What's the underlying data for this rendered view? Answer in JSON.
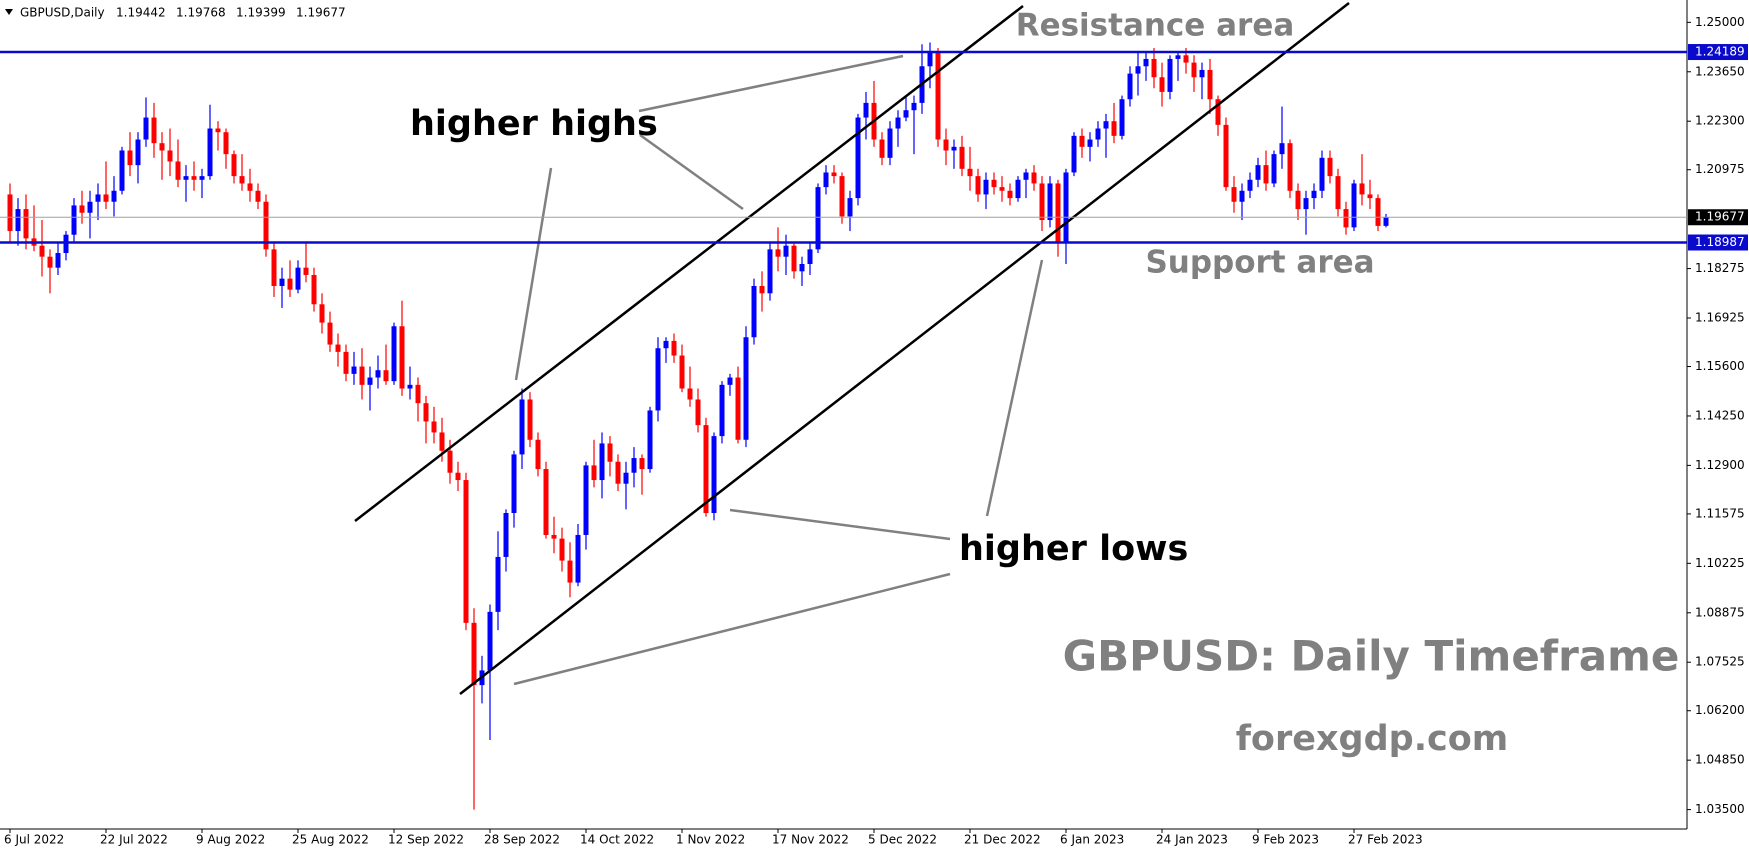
{
  "chart_data": {
    "type": "candlestick",
    "symbol": "GBPUSD,Daily",
    "up_color": "#0000ff",
    "down_color": "#ff0000",
    "level_color": "#0a0acd",
    "grid": false,
    "ylim": [
      1.0297,
      1.2561
    ],
    "yticks": [
      {
        "value": 1.25,
        "label": "1.25000"
      },
      {
        "value": 1.2365,
        "label": "1.23650"
      },
      {
        "value": 1.223,
        "label": "1.22300"
      },
      1.20975,
      1.18275,
      1.16925,
      {
        "value": 1.156,
        "label": "1.15600"
      },
      {
        "value": 1.1425,
        "label": "1.14250"
      },
      {
        "value": 1.129,
        "label": "1.12900"
      },
      1.11575,
      1.10225,
      1.08875,
      1.07525,
      {
        "value": 1.062,
        "label": "1.06200"
      },
      {
        "value": 1.0485,
        "label": "1.04850"
      },
      {
        "value": 1.035,
        "label": "1.03500"
      }
    ],
    "levels": [
      {
        "name": "Resistance area",
        "value": 1.24189
      },
      {
        "name": "Support area",
        "value": 1.18987
      }
    ],
    "annotations": {
      "higher_highs": "higher highs",
      "higher_lows": "higher lows",
      "watermark": "GBPUSD: Daily Timeframe",
      "website": "forexgdp.com"
    },
    "categories": [
      "6 Jul 2022",
      null,
      null,
      null,
      null,
      null,
      null,
      null,
      null,
      null,
      null,
      null,
      "22 Jul 2022",
      null,
      null,
      null,
      null,
      null,
      null,
      null,
      null,
      null,
      null,
      null,
      "9 Aug 2022",
      null,
      null,
      null,
      null,
      null,
      null,
      null,
      null,
      null,
      null,
      null,
      "25 Aug 2022",
      null,
      null,
      null,
      null,
      null,
      null,
      null,
      null,
      null,
      null,
      null,
      "12 Sep 2022",
      null,
      null,
      null,
      null,
      null,
      null,
      null,
      null,
      null,
      null,
      null,
      "28 Sep 2022",
      null,
      null,
      null,
      null,
      null,
      null,
      null,
      null,
      null,
      null,
      null,
      "14 Oct 2022",
      null,
      null,
      null,
      null,
      null,
      null,
      null,
      null,
      null,
      null,
      null,
      "1 Nov 2022",
      null,
      null,
      null,
      null,
      null,
      null,
      null,
      null,
      null,
      null,
      null,
      "17 Nov 2022",
      null,
      null,
      null,
      null,
      null,
      null,
      null,
      null,
      null,
      null,
      null,
      "5 Dec 2022",
      null,
      null,
      null,
      null,
      null,
      null,
      null,
      null,
      null,
      null,
      null,
      "21 Dec 2022",
      null,
      null,
      null,
      null,
      null,
      null,
      null,
      null,
      null,
      null,
      null,
      "6 Jan 2023",
      null,
      null,
      null,
      null,
      null,
      null,
      null,
      null,
      null,
      null,
      null,
      "24 Jan 2023",
      null,
      null,
      null,
      null,
      null,
      null,
      null,
      null,
      null,
      null,
      null,
      "9 Feb 2023",
      null,
      null,
      null,
      null,
      null,
      null,
      null,
      null,
      null,
      null,
      null,
      "27 Feb 2023",
      null,
      null,
      null,
      null
    ],
    "ohlc": [
      [
        1.203,
        1.206,
        1.19,
        1.193
      ],
      [
        1.193,
        1.202,
        1.189,
        1.199
      ],
      [
        1.199,
        1.203,
        1.188,
        1.191
      ],
      [
        1.191,
        1.2,
        1.1875,
        1.189
      ],
      [
        1.189,
        1.196,
        1.1806,
        1.186
      ],
      [
        1.186,
        1.188,
        1.176,
        1.183
      ],
      [
        1.183,
        1.19,
        1.181,
        1.187
      ],
      [
        1.187,
        1.193,
        1.185,
        1.192
      ],
      [
        1.192,
        1.202,
        1.19,
        1.2
      ],
      [
        1.2,
        1.204,
        1.195,
        1.198
      ],
      [
        1.198,
        1.204,
        1.191,
        1.201
      ],
      [
        1.201,
        1.206,
        1.196,
        1.203
      ],
      [
        1.203,
        1.212,
        1.199,
        1.201
      ],
      [
        1.201,
        1.208,
        1.197,
        1.204
      ],
      [
        1.204,
        1.216,
        1.203,
        1.215
      ],
      [
        1.215,
        1.22,
        1.208,
        1.211
      ],
      [
        1.211,
        1.22,
        1.206,
        1.218
      ],
      [
        1.218,
        1.2295,
        1.216,
        1.224
      ],
      [
        1.224,
        1.228,
        1.213,
        1.217
      ],
      [
        1.217,
        1.22,
        1.207,
        1.215
      ],
      [
        1.215,
        1.221,
        1.208,
        1.212
      ],
      [
        1.212,
        1.218,
        1.205,
        1.207
      ],
      [
        1.207,
        1.211,
        1.201,
        1.208
      ],
      [
        1.208,
        1.212,
        1.204,
        1.207
      ],
      [
        1.207,
        1.21,
        1.202,
        1.208
      ],
      [
        1.208,
        1.2275,
        1.207,
        1.221
      ],
      [
        1.221,
        1.223,
        1.215,
        1.22
      ],
      [
        1.22,
        1.221,
        1.21,
        1.214
      ],
      [
        1.214,
        1.215,
        1.206,
        1.208
      ],
      [
        1.208,
        1.214,
        1.204,
        1.206
      ],
      [
        1.206,
        1.21,
        1.201,
        1.204
      ],
      [
        1.204,
        1.206,
        1.199,
        1.201
      ],
      [
        1.201,
        1.203,
        1.186,
        1.188
      ],
      [
        1.188,
        1.19,
        1.175,
        1.178
      ],
      [
        1.178,
        1.183,
        1.172,
        1.18
      ],
      [
        1.18,
        1.185,
        1.175,
        1.177
      ],
      [
        1.177,
        1.185,
        1.176,
        1.183
      ],
      [
        1.183,
        1.19,
        1.179,
        1.181
      ],
      [
        1.181,
        1.183,
        1.171,
        1.173
      ],
      [
        1.173,
        1.176,
        1.165,
        1.168
      ],
      [
        1.168,
        1.171,
        1.16,
        1.162
      ],
      [
        1.162,
        1.165,
        1.156,
        1.16
      ],
      [
        1.16,
        1.162,
        1.152,
        1.154
      ],
      [
        1.154,
        1.16,
        1.151,
        1.156
      ],
      [
        1.156,
        1.161,
        1.147,
        1.151
      ],
      [
        1.151,
        1.156,
        1.144,
        1.153
      ],
      [
        1.153,
        1.159,
        1.15,
        1.155
      ],
      [
        1.155,
        1.162,
        1.151,
        1.152
      ],
      [
        1.152,
        1.168,
        1.151,
        1.167
      ],
      [
        1.167,
        1.174,
        1.148,
        1.15
      ],
      [
        1.15,
        1.156,
        1.147,
        1.151
      ],
      [
        1.151,
        1.153,
        1.141,
        1.146
      ],
      [
        1.146,
        1.148,
        1.135,
        1.141
      ],
      [
        1.141,
        1.145,
        1.135,
        1.138
      ],
      [
        1.138,
        1.142,
        1.13,
        1.133
      ],
      [
        1.133,
        1.136,
        1.124,
        1.127
      ],
      [
        1.127,
        1.13,
        1.122,
        1.125
      ],
      [
        1.125,
        1.127,
        1.084,
        1.086
      ],
      [
        1.086,
        1.09,
        1.035,
        1.069
      ],
      [
        1.069,
        1.077,
        1.064,
        1.073
      ],
      [
        1.073,
        1.091,
        1.054,
        1.089
      ],
      [
        1.089,
        1.111,
        1.084,
        1.104
      ],
      [
        1.104,
        1.117,
        1.1,
        1.116
      ],
      [
        1.116,
        1.133,
        1.112,
        1.132
      ],
      [
        1.132,
        1.15,
        1.128,
        1.147
      ],
      [
        1.147,
        1.149,
        1.134,
        1.136
      ],
      [
        1.136,
        1.138,
        1.126,
        1.128
      ],
      [
        1.128,
        1.13,
        1.109,
        1.11
      ],
      [
        1.11,
        1.115,
        1.105,
        1.109
      ],
      [
        1.109,
        1.112,
        1.1,
        1.103
      ],
      [
        1.103,
        1.108,
        1.093,
        1.097
      ],
      [
        1.097,
        1.113,
        1.096,
        1.11
      ],
      [
        1.11,
        1.13,
        1.106,
        1.129
      ],
      [
        1.129,
        1.136,
        1.123,
        1.125
      ],
      [
        1.125,
        1.138,
        1.12,
        1.135
      ],
      [
        1.135,
        1.137,
        1.126,
        1.13
      ],
      [
        1.13,
        1.132,
        1.122,
        1.124
      ],
      [
        1.124,
        1.13,
        1.117,
        1.127
      ],
      [
        1.127,
        1.134,
        1.123,
        1.131
      ],
      [
        1.131,
        1.132,
        1.121,
        1.128
      ],
      [
        1.128,
        1.145,
        1.127,
        1.144
      ],
      [
        1.144,
        1.164,
        1.141,
        1.161
      ],
      [
        1.161,
        1.164,
        1.157,
        1.163
      ],
      [
        1.163,
        1.165,
        1.157,
        1.159
      ],
      [
        1.159,
        1.162,
        1.149,
        1.15
      ],
      [
        1.15,
        1.156,
        1.145,
        1.147
      ],
      [
        1.147,
        1.15,
        1.138,
        1.14
      ],
      [
        1.14,
        1.142,
        1.115,
        1.116
      ],
      [
        1.116,
        1.138,
        1.114,
        1.137
      ],
      [
        1.137,
        1.152,
        1.135,
        1.151
      ],
      [
        1.151,
        1.154,
        1.148,
        1.153
      ],
      [
        1.153,
        1.156,
        1.135,
        1.136
      ],
      [
        1.136,
        1.167,
        1.134,
        1.164
      ],
      [
        1.164,
        1.18,
        1.162,
        1.178
      ],
      [
        1.178,
        1.182,
        1.171,
        1.176
      ],
      [
        1.176,
        1.19,
        1.174,
        1.188
      ],
      [
        1.188,
        1.194,
        1.182,
        1.186
      ],
      [
        1.186,
        1.192,
        1.181,
        1.189
      ],
      [
        1.189,
        1.19,
        1.18,
        1.182
      ],
      [
        1.182,
        1.186,
        1.178,
        1.184
      ],
      [
        1.184,
        1.19,
        1.181,
        1.188
      ],
      [
        1.188,
        1.206,
        1.187,
        1.205
      ],
      [
        1.205,
        1.211,
        1.203,
        1.209
      ],
      [
        1.209,
        1.211,
        1.206,
        1.208
      ],
      [
        1.208,
        1.209,
        1.195,
        1.197
      ],
      [
        1.197,
        1.204,
        1.193,
        1.202
      ],
      [
        1.202,
        1.225,
        1.2,
        1.224
      ],
      [
        1.224,
        1.231,
        1.218,
        1.228
      ],
      [
        1.228,
        1.234,
        1.216,
        1.218
      ],
      [
        1.218,
        1.22,
        1.211,
        1.213
      ],
      [
        1.213,
        1.223,
        1.211,
        1.221
      ],
      [
        1.221,
        1.226,
        1.216,
        1.224
      ],
      [
        1.224,
        1.23,
        1.223,
        1.226
      ],
      [
        1.226,
        1.23,
        1.214,
        1.228
      ],
      [
        1.228,
        1.244,
        1.225,
        1.238
      ],
      [
        1.238,
        1.2445,
        1.232,
        1.242
      ],
      [
        1.242,
        1.243,
        1.216,
        1.218
      ],
      [
        1.218,
        1.221,
        1.211,
        1.215
      ],
      [
        1.215,
        1.218,
        1.21,
        1.216
      ],
      [
        1.216,
        1.219,
        1.208,
        1.21
      ],
      [
        1.21,
        1.216,
        1.204,
        1.208
      ],
      [
        1.208,
        1.21,
        1.201,
        1.203
      ],
      [
        1.203,
        1.209,
        1.199,
        1.207
      ],
      [
        1.207,
        1.209,
        1.203,
        1.205
      ],
      [
        1.205,
        1.208,
        1.201,
        1.204
      ],
      [
        1.204,
        1.206,
        1.2,
        1.202
      ],
      [
        1.202,
        1.208,
        1.201,
        1.207
      ],
      [
        1.207,
        1.21,
        1.202,
        1.209
      ],
      [
        1.209,
        1.211,
        1.204,
        1.206
      ],
      [
        1.206,
        1.208,
        1.193,
        1.196
      ],
      [
        1.196,
        1.208,
        1.194,
        1.206
      ],
      [
        1.206,
        1.207,
        1.186,
        1.19
      ],
      [
        1.19,
        1.21,
        1.184,
        1.209
      ],
      [
        1.209,
        1.22,
        1.208,
        1.219
      ],
      [
        1.219,
        1.221,
        1.213,
        1.216
      ],
      [
        1.216,
        1.22,
        1.212,
        1.218
      ],
      [
        1.218,
        1.223,
        1.216,
        1.221
      ],
      [
        1.221,
        1.225,
        1.213,
        1.223
      ],
      [
        1.223,
        1.228,
        1.217,
        1.219
      ],
      [
        1.219,
        1.23,
        1.218,
        1.229
      ],
      [
        1.229,
        1.238,
        1.227,
        1.236
      ],
      [
        1.236,
        1.242,
        1.23,
        1.238
      ],
      [
        1.238,
        1.242,
        1.234,
        1.24
      ],
      [
        1.24,
        1.243,
        1.232,
        1.235
      ],
      [
        1.235,
        1.239,
        1.227,
        1.231
      ],
      [
        1.231,
        1.241,
        1.229,
        1.24
      ],
      [
        1.24,
        1.242,
        1.234,
        1.241
      ],
      [
        1.241,
        1.243,
        1.236,
        1.239
      ],
      [
        1.239,
        1.241,
        1.231,
        1.235
      ],
      [
        1.235,
        1.239,
        1.229,
        1.237
      ],
      [
        1.237,
        1.24,
        1.225,
        1.229
      ],
      [
        1.229,
        1.23,
        1.219,
        1.222
      ],
      [
        1.222,
        1.224,
        1.204,
        1.205
      ],
      [
        1.205,
        1.208,
        1.198,
        1.201
      ],
      [
        1.201,
        1.206,
        1.196,
        1.204
      ],
      [
        1.204,
        1.209,
        1.202,
        1.207
      ],
      [
        1.207,
        1.213,
        1.205,
        1.211
      ],
      [
        1.211,
        1.215,
        1.204,
        1.206
      ],
      [
        1.206,
        1.215,
        1.205,
        1.214
      ],
      [
        1.214,
        1.227,
        1.21,
        1.217
      ],
      [
        1.217,
        1.218,
        1.202,
        1.204
      ],
      [
        1.204,
        1.206,
        1.196,
        1.199
      ],
      [
        1.199,
        1.204,
        1.192,
        1.202
      ],
      [
        1.202,
        1.206,
        1.199,
        1.204
      ],
      [
        1.204,
        1.215,
        1.202,
        1.213
      ],
      [
        1.213,
        1.215,
        1.206,
        1.208
      ],
      [
        1.208,
        1.21,
        1.197,
        1.199
      ],
      [
        1.199,
        1.201,
        1.192,
        1.194
      ],
      [
        1.194,
        1.207,
        1.193,
        1.206
      ],
      [
        1.206,
        1.214,
        1.2,
        1.203
      ],
      [
        1.203,
        1.207,
        1.199,
        1.202
      ],
      [
        1.202,
        1.203,
        1.193,
        1.1944
      ],
      [
        1.19442,
        1.19768,
        1.19399,
        1.19677
      ]
    ]
  }
}
